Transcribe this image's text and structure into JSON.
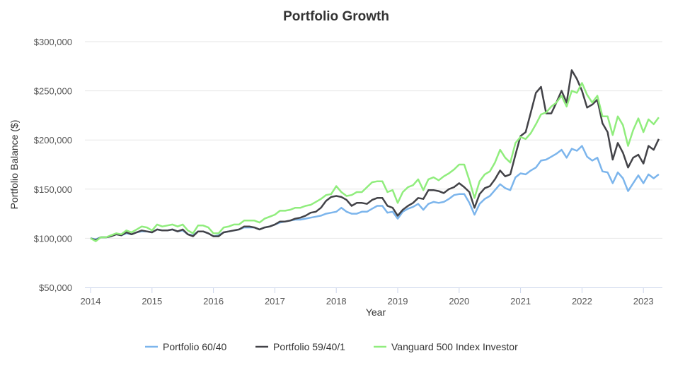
{
  "chart_data": {
    "type": "line",
    "title": "Portfolio Growth",
    "xlabel": "Year",
    "ylabel": "Portfolio Balance ($)",
    "ylim": [
      50000,
      300000
    ],
    "y_ticks": [
      50000,
      100000,
      150000,
      200000,
      250000,
      300000
    ],
    "y_tick_labels": [
      "$50,000",
      "$100,000",
      "$150,000",
      "$200,000",
      "$250,000",
      "$300,000"
    ],
    "x_ticks": [
      "2014",
      "2015",
      "2016",
      "2017",
      "2018",
      "2019",
      "2020",
      "2021",
      "2022",
      "2023"
    ],
    "grid": "horizontal",
    "legend_position": "bottom",
    "x": [
      "2014-01",
      "2014-02",
      "2014-03",
      "2014-04",
      "2014-05",
      "2014-06",
      "2014-07",
      "2014-08",
      "2014-09",
      "2014-10",
      "2014-11",
      "2014-12",
      "2015-01",
      "2015-02",
      "2015-03",
      "2015-04",
      "2015-05",
      "2015-06",
      "2015-07",
      "2015-08",
      "2015-09",
      "2015-10",
      "2015-11",
      "2015-12",
      "2016-01",
      "2016-02",
      "2016-03",
      "2016-04",
      "2016-05",
      "2016-06",
      "2016-07",
      "2016-08",
      "2016-09",
      "2016-10",
      "2016-11",
      "2016-12",
      "2017-01",
      "2017-02",
      "2017-03",
      "2017-04",
      "2017-05",
      "2017-06",
      "2017-07",
      "2017-08",
      "2017-09",
      "2017-10",
      "2017-11",
      "2017-12",
      "2018-01",
      "2018-02",
      "2018-03",
      "2018-04",
      "2018-05",
      "2018-06",
      "2018-07",
      "2018-08",
      "2018-09",
      "2018-10",
      "2018-11",
      "2018-12",
      "2019-01",
      "2019-02",
      "2019-03",
      "2019-04",
      "2019-05",
      "2019-06",
      "2019-07",
      "2019-08",
      "2019-09",
      "2019-10",
      "2019-11",
      "2019-12",
      "2020-01",
      "2020-02",
      "2020-03",
      "2020-04",
      "2020-05",
      "2020-06",
      "2020-07",
      "2020-08",
      "2020-09",
      "2020-10",
      "2020-11",
      "2020-12",
      "2021-01",
      "2021-02",
      "2021-03",
      "2021-04",
      "2021-05",
      "2021-06",
      "2021-07",
      "2021-08",
      "2021-09",
      "2021-10",
      "2021-11",
      "2021-12",
      "2022-01",
      "2022-02",
      "2022-03",
      "2022-04",
      "2022-05",
      "2022-06",
      "2022-07",
      "2022-08",
      "2022-09",
      "2022-10",
      "2022-11",
      "2022-12",
      "2023-01",
      "2023-02",
      "2023-03",
      "2023-04"
    ],
    "series": [
      {
        "name": "Portfolio 60/40",
        "color": "#7cb5ec",
        "values": [
          100000,
          99000,
          101000,
          101000,
          102000,
          104000,
          103000,
          105000,
          104000,
          106000,
          107000,
          107000,
          106000,
          109000,
          108000,
          108000,
          109000,
          107000,
          108000,
          104000,
          103000,
          107000,
          107000,
          105000,
          102000,
          103000,
          106000,
          107000,
          108000,
          109000,
          111000,
          111000,
          111000,
          109000,
          111000,
          112000,
          114000,
          116000,
          117000,
          118000,
          119000,
          119000,
          120000,
          121000,
          122000,
          123000,
          125000,
          126000,
          127000,
          131000,
          127000,
          125000,
          125000,
          127000,
          127000,
          130000,
          133000,
          133000,
          126000,
          127000,
          120000,
          127000,
          130000,
          132000,
          135000,
          129000,
          135000,
          137000,
          136000,
          137000,
          140000,
          144000,
          145000,
          145000,
          136000,
          124000,
          135000,
          140000,
          143000,
          149000,
          155000,
          151000,
          149000,
          162000,
          166000,
          165000,
          169000,
          172000,
          179000,
          180000,
          183000,
          186000,
          190000,
          182000,
          191000,
          189000,
          194000,
          183000,
          179000,
          182000,
          168000,
          167000,
          156000,
          167000,
          161000,
          148000,
          156000,
          164000,
          156000,
          165000,
          161000,
          165000
        ]
      },
      {
        "name": "Portfolio 59/40/1",
        "color": "#434348",
        "values": [
          100000,
          98000,
          101000,
          101000,
          102000,
          104000,
          103000,
          106000,
          104000,
          106000,
          108000,
          107000,
          106000,
          109000,
          108000,
          108000,
          109000,
          107000,
          109000,
          104000,
          102000,
          107000,
          107000,
          105000,
          102000,
          102000,
          106000,
          107000,
          108000,
          109000,
          112000,
          112000,
          111000,
          109000,
          111000,
          112000,
          114000,
          117000,
          117000,
          118000,
          120000,
          121000,
          123000,
          126000,
          127000,
          131000,
          138000,
          142000,
          143000,
          142000,
          139000,
          133000,
          136000,
          136000,
          135000,
          139000,
          141000,
          141000,
          133000,
          131000,
          123000,
          129000,
          133000,
          136000,
          141000,
          140000,
          149000,
          149000,
          148000,
          146000,
          150000,
          152000,
          156000,
          152000,
          147000,
          131000,
          145000,
          151000,
          153000,
          160000,
          169000,
          163000,
          165000,
          185000,
          204000,
          208000,
          228000,
          248000,
          254000,
          227000,
          227000,
          238000,
          250000,
          238000,
          271000,
          262000,
          250000,
          233000,
          236000,
          241000,
          217000,
          208000,
          180000,
          197000,
          187000,
          172000,
          182000,
          185000,
          176000,
          194000,
          190000,
          201000
        ]
      },
      {
        "name": "Vanguard 500 Index Investor",
        "color": "#90ed7d",
        "values": [
          100000,
          97000,
          101000,
          101000,
          103000,
          105000,
          104000,
          108000,
          106000,
          109000,
          112000,
          111000,
          108000,
          114000,
          112000,
          113000,
          114000,
          112000,
          114000,
          108000,
          105000,
          113000,
          113000,
          111000,
          105000,
          105000,
          111000,
          112000,
          114000,
          114000,
          118000,
          118000,
          118000,
          116000,
          120000,
          122000,
          124000,
          128000,
          128000,
          129000,
          131000,
          131000,
          133000,
          134000,
          137000,
          140000,
          144000,
          145000,
          153000,
          147000,
          143000,
          144000,
          147000,
          147000,
          152000,
          157000,
          158000,
          158000,
          147000,
          149000,
          136000,
          147000,
          152000,
          154000,
          160000,
          149000,
          160000,
          162000,
          159000,
          163000,
          166000,
          170000,
          175000,
          175000,
          159000,
          141000,
          158000,
          165000,
          168000,
          177000,
          190000,
          182000,
          177000,
          197000,
          203000,
          201000,
          207000,
          216000,
          226000,
          228000,
          234000,
          238000,
          245000,
          234000,
          250000,
          248000,
          258000,
          246000,
          238000,
          245000,
          224000,
          224000,
          205000,
          224000,
          215000,
          194000,
          210000,
          222000,
          208000,
          221000,
          216000,
          223000
        ]
      }
    ]
  }
}
